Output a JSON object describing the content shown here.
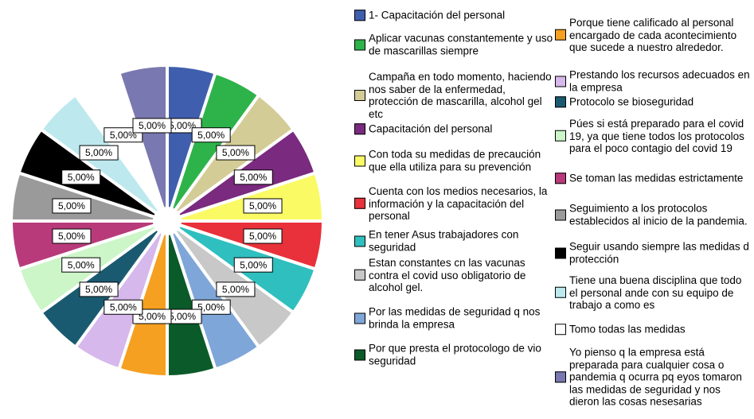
{
  "chart_data": {
    "type": "pie",
    "categories": [
      "1- Capacitación del personal",
      "Aplicar vacunas constantemente y uso de mascarillas siempre",
      "Campaña en todo momento, haciendo nos saber de la enfermedad,  protección de mascarilla, alcohol gel etc",
      "Capacitación del personal",
      "Con toda su medidas de precaución que ella utiliza para su prevención",
      "Cuenta con los medios necesarios, la información y la capacitación del personal",
      "En tener Asus trabajadores con seguridad",
      "Estan constantes cn las vacunas contra el covid uso obligatorio de alcohol gel.",
      "Por las medidas de seguridad q nos brinda la empresa",
      "Por que presta el protocologo de vio seguridad",
      "Porque tiene calificado al personal encargado de cada acontecimiento que sucede a nuestro alrededor.",
      "Prestando los recursos adecuados en la empresa",
      "Protocolo se  bioseguridad",
      "Púes si está preparado para el covid 19, ya que tiene todos los protocolos para el poco contagio del covid 19",
      "Se toman las medidas estrictamente",
      "Seguimiento a los protocolos establecidos al inicio de la pandemia.",
      "Seguir usando siempre las medidas d protección",
      "Tiene una buena disciplina que todo el personal ande con su equipo de trabajo a como es",
      "Tomo todas las medidas",
      "Yo pienso q la empresa está preparada para cualquier cosa o pandemia q ocurra  pq eyos tomaron las medidas de seguridad y nos dieron las cosas nesesarias"
    ],
    "values": [
      5,
      5,
      5,
      5,
      5,
      5,
      5,
      5,
      5,
      5,
      5,
      5,
      5,
      5,
      5,
      5,
      5,
      5,
      5,
      5
    ],
    "value_labels": [
      "5,00%",
      "5,00%",
      "5,00%",
      "5,00%",
      "5,00%",
      "5,00%",
      "5,00%",
      "5,00%",
      "5,00%",
      "5,00%",
      "5,00%",
      "5,00%",
      "5,00%",
      "5,00%",
      "5,00%",
      "5,00%",
      "5,00%",
      "5,00%",
      "5,00%",
      "5,00%"
    ],
    "colors": [
      "#3f5fae",
      "#2db34a",
      "#d4cc96",
      "#7a2a7f",
      "#fafa64",
      "#e8313a",
      "#2fbfbf",
      "#c8c8c8",
      "#7fa6d8",
      "#0b5a2a",
      "#f5a020",
      "#d6b8ec",
      "#1a5a70",
      "#ccf5c8",
      "#b83a7a",
      "#9a9a9a",
      "#000000",
      "#bde9ee",
      "#ffffff",
      "#7a78b0"
    ]
  }
}
